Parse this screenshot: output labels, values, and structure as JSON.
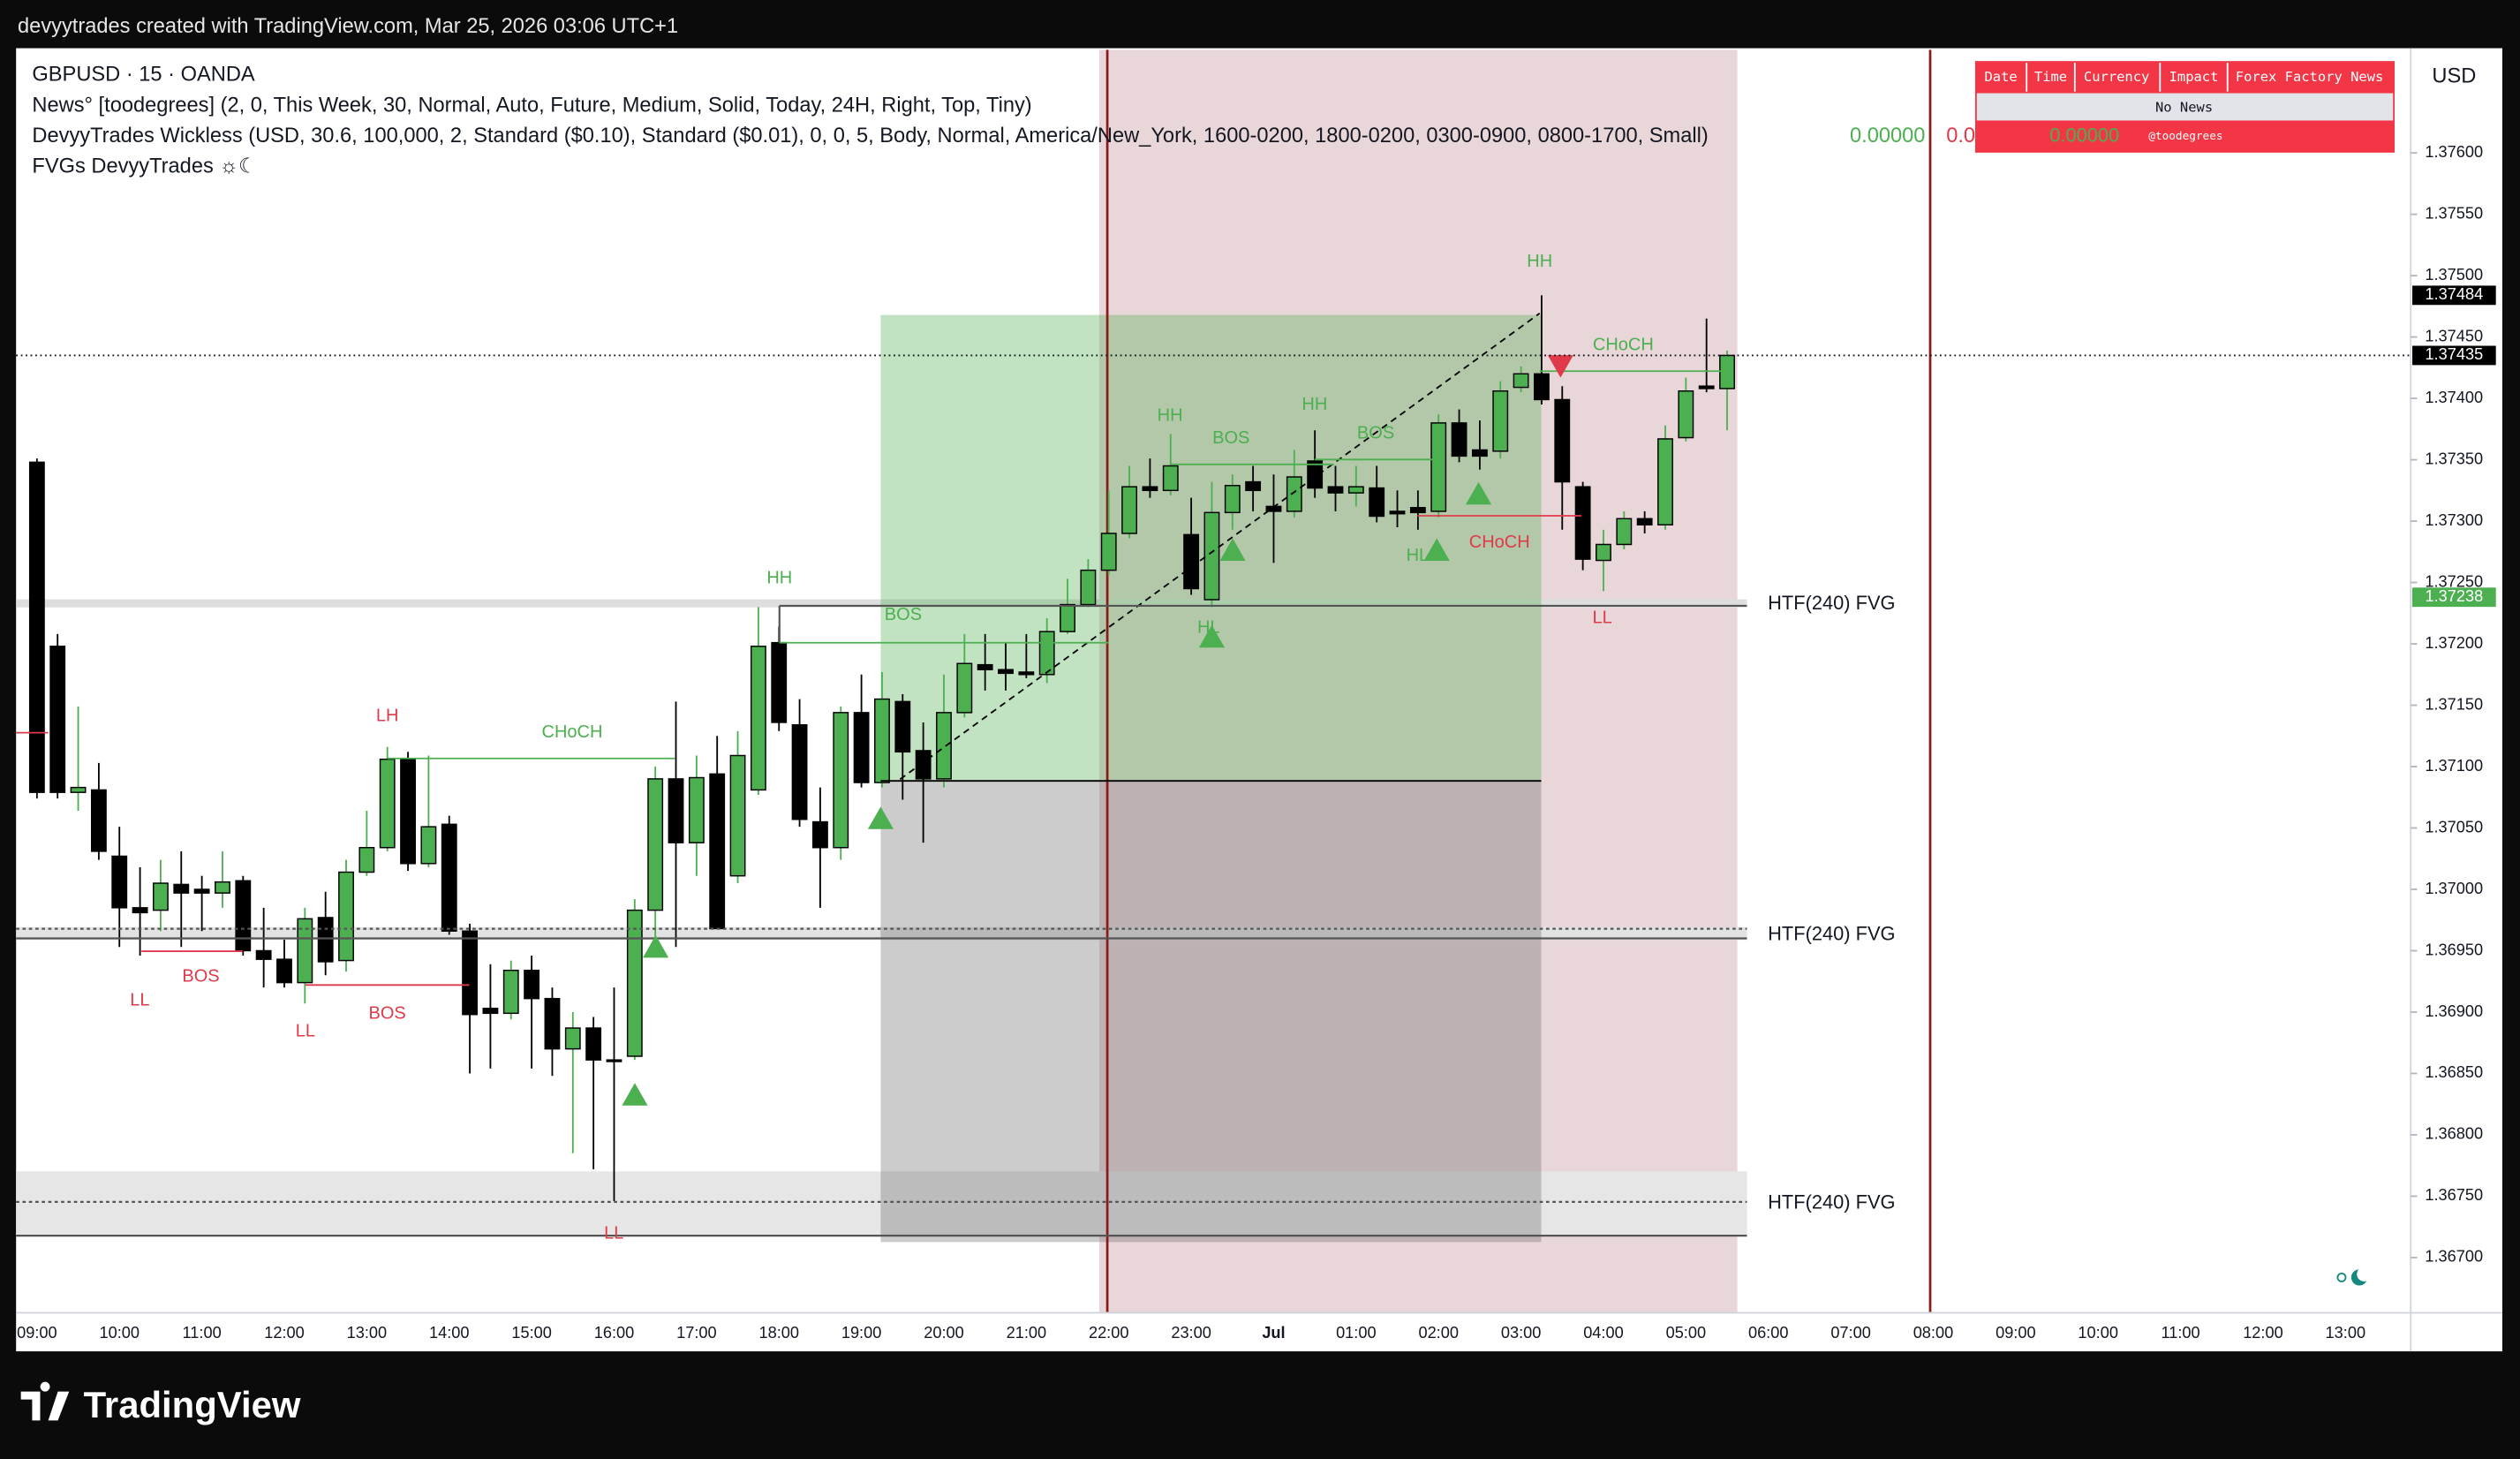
{
  "header": {
    "caption": "devyytrades created with TradingView.com, Mar 25, 2026 03:06 UTC+1",
    "brand": "TradingView"
  },
  "legend": {
    "symbol": "GBPUSD · 15 · OANDA",
    "news_indicator": "News° [toodegrees] (2, 0, This Week, 30, Normal, Auto, Future, Medium, Solid, Today, 24H, Right, Top, Tiny)",
    "wickless_indicator": "DevyyTrades Wickless (USD, 30.6, 100,000, 2, Standard ($0.10), Standard ($0.01), 0, 0, 5, Body, Normal, America/New_York, 1600-0200, 1800-0200, 0300-0900, 0800-1700, Small)",
    "wickless_values": [
      "0.00000",
      "0.0"
    ],
    "fvg_indicator": "FVGs DevyyTrades ☼☾"
  },
  "news_table": {
    "headers": [
      "Date",
      "Time",
      "Currency",
      "Impact",
      "Forex Factory News"
    ],
    "rows": [
      [
        "No News"
      ],
      [
        "0.00000",
        "@toodegrees"
      ]
    ]
  },
  "currency": "USD",
  "chart_data": {
    "type": "candlestick",
    "up_color": "#4caf50",
    "down_color": "#000000",
    "categories": [
      "09:00",
      null,
      null,
      null,
      "10:00",
      null,
      null,
      null,
      "11:00",
      null,
      null,
      null,
      "12:00",
      null,
      null,
      null,
      "13:00",
      null,
      null,
      null,
      "14:00",
      null,
      null,
      null,
      "15:00",
      null,
      null,
      null,
      "16:00",
      null,
      null,
      null,
      "17:00",
      null,
      null,
      null,
      "18:00",
      null,
      null,
      null,
      "19:00",
      null,
      null,
      null,
      "20:00",
      null,
      null,
      null,
      "21:00",
      null,
      null,
      null,
      "22:00",
      null,
      null,
      null,
      "23:00",
      null,
      null,
      null,
      "Jul",
      null,
      null,
      null,
      "01:00",
      null,
      null,
      null,
      "02:00",
      null,
      null,
      null,
      "03:00",
      null,
      null,
      null,
      "04:00",
      null,
      null,
      null,
      "05:00",
      null,
      null,
      null,
      "06:00",
      null,
      null,
      null,
      "07:00",
      null,
      null,
      null,
      "08:00",
      null,
      null,
      null,
      "09:00",
      null,
      null,
      null,
      "10:00",
      null,
      null,
      null,
      "11:00",
      null,
      null,
      null,
      "12:00",
      null,
      null,
      null,
      "13:00"
    ],
    "open": [
      1.37348,
      1.37198,
      1.37079,
      1.37081,
      1.37027,
      1.36985,
      1.36983,
      1.37004,
      1.37,
      1.36997,
      1.37007,
      1.3695,
      1.36943,
      1.36924,
      1.36977,
      1.36942,
      1.37014,
      1.37034,
      1.37106,
      1.37021,
      1.37053,
      1.36966,
      1.36903,
      1.36899,
      1.36934,
      1.36911,
      1.3687,
      1.36887,
      1.36861,
      1.36864,
      1.36983,
      1.3709,
      1.37038,
      1.37094,
      1.37011,
      1.37081,
      1.37201,
      1.37134,
      1.37055,
      1.37034,
      1.37144,
      1.37087,
      1.37153,
      1.37113,
      1.3709,
      1.37144,
      1.37183,
      1.37179,
      1.37177,
      1.37175,
      1.3721,
      1.37232,
      1.3726,
      1.3729,
      1.37328,
      1.37325,
      1.37289,
      1.37236,
      1.37307,
      1.37332,
      1.37312,
      1.37308,
      1.37349,
      1.37328,
      1.37323,
      1.37327,
      1.37308,
      1.37311,
      1.37308,
      1.3738,
      1.37358,
      1.37357,
      1.37409,
      1.3742,
      1.37399,
      1.37328,
      1.37268,
      1.37281,
      1.37302,
      1.37297,
      1.37368,
      1.3741,
      1.37408,
      null,
      null,
      null,
      null,
      null,
      null,
      null,
      null,
      null,
      null,
      null,
      null,
      null,
      null,
      null,
      null,
      null,
      null,
      null,
      null,
      null,
      null,
      null,
      null,
      null,
      null,
      null,
      null,
      null,
      null
    ],
    "high": [
      1.37351,
      1.37208,
      1.37149,
      1.37103,
      1.37051,
      1.37018,
      1.37024,
      1.37031,
      1.37011,
      1.37031,
      1.37011,
      1.36985,
      1.36959,
      1.36985,
      1.36998,
      1.37024,
      1.37064,
      1.37116,
      1.37112,
      1.37109,
      1.3706,
      1.36972,
      1.36939,
      1.36942,
      1.36946,
      1.3692,
      1.369,
      1.36896,
      1.3692,
      1.36992,
      1.371,
      1.37153,
      1.37109,
      1.37125,
      1.37129,
      1.3723,
      1.37214,
      1.37155,
      1.37083,
      1.37149,
      1.37175,
      1.37177,
      1.37159,
      1.37136,
      1.37175,
      1.37208,
      1.37208,
      1.37201,
      1.37208,
      1.37221,
      1.37253,
      1.37269,
      1.37325,
      1.37345,
      1.37351,
      1.37371,
      1.37319,
      1.37332,
      1.37338,
      1.37345,
      1.37338,
      1.37358,
      1.37374,
      1.37345,
      1.37345,
      1.37345,
      1.37325,
      1.37325,
      1.37387,
      1.37391,
      1.37382,
      1.37414,
      1.37426,
      1.37484,
      1.3741,
      1.37332,
      1.37293,
      1.37308,
      1.37308,
      1.37378,
      1.37417,
      1.37465,
      1.37439,
      null,
      null,
      null,
      null,
      null,
      null,
      null,
      null,
      null,
      null,
      null,
      null,
      null,
      null,
      null,
      null,
      null,
      null,
      null,
      null,
      null,
      null,
      null,
      null,
      null,
      null,
      null,
      null,
      null,
      null
    ],
    "low": [
      1.37074,
      1.37074,
      1.37064,
      1.37024,
      1.36953,
      1.36946,
      1.36966,
      1.36953,
      1.36966,
      1.36985,
      1.36946,
      1.3692,
      1.3692,
      1.36907,
      1.3693,
      1.36933,
      1.37011,
      1.37031,
      1.37015,
      1.37018,
      1.36963,
      1.3685,
      1.36854,
      1.36894,
      1.36854,
      1.36848,
      1.36785,
      1.36772,
      1.36746,
      1.36861,
      1.36953,
      1.36953,
      1.37011,
      1.36968,
      1.37005,
      1.37077,
      1.37129,
      1.37051,
      1.36985,
      1.37024,
      1.37083,
      1.37083,
      1.37073,
      1.37038,
      1.37083,
      1.3714,
      1.37162,
      1.37162,
      1.37172,
      1.37168,
      1.37208,
      1.3723,
      1.37256,
      1.37286,
      1.37319,
      1.37321,
      1.3724,
      1.3723,
      1.37293,
      1.37308,
      1.37266,
      1.37303,
      1.37319,
      1.37308,
      1.37312,
      1.37299,
      1.37295,
      1.37293,
      1.37303,
      1.37348,
      1.37342,
      1.37351,
      1.37405,
      1.37395,
      1.37293,
      1.3726,
      1.37243,
      1.37277,
      1.3729,
      1.37293,
      1.37365,
      1.37405,
      1.37374,
      null,
      null,
      null,
      null,
      null,
      null,
      null,
      null,
      null,
      null,
      null,
      null,
      null,
      null,
      null,
      null,
      null,
      null,
      null,
      null,
      null,
      null,
      null,
      null,
      null,
      null,
      null,
      null,
      null,
      null
    ],
    "close": [
      1.37079,
      1.37079,
      1.37083,
      1.37031,
      1.36985,
      1.36981,
      1.37005,
      1.36997,
      1.36997,
      1.37006,
      1.3695,
      1.36943,
      1.36924,
      1.36976,
      1.36941,
      1.37014,
      1.37034,
      1.37106,
      1.37021,
      1.37051,
      1.36966,
      1.36898,
      1.36899,
      1.36934,
      1.36911,
      1.3687,
      1.36887,
      1.36861,
      1.3686,
      1.36983,
      1.3709,
      1.37038,
      1.37091,
      1.36968,
      1.37109,
      1.37198,
      1.37136,
      1.37057,
      1.37034,
      1.37144,
      1.37087,
      1.37155,
      1.37112,
      1.3709,
      1.37144,
      1.37184,
      1.37179,
      1.37176,
      1.37175,
      1.3721,
      1.37232,
      1.3726,
      1.3729,
      1.37328,
      1.37325,
      1.37345,
      1.37245,
      1.37307,
      1.37329,
      1.37325,
      1.37308,
      1.37336,
      1.37327,
      1.37323,
      1.37328,
      1.37304,
      1.37306,
      1.37307,
      1.3738,
      1.37353,
      1.37353,
      1.37406,
      1.3742,
      1.37399,
      1.37332,
      1.37269,
      1.37281,
      1.37302,
      1.37297,
      1.37367,
      1.37406,
      1.37408,
      1.37435,
      null,
      null,
      null,
      null,
      null,
      null,
      null,
      null,
      null,
      null,
      null,
      null,
      null,
      null,
      null,
      null,
      null,
      null,
      null,
      null,
      null,
      null,
      null,
      null,
      null,
      null,
      null,
      null,
      null,
      null
    ],
    "ylim": [
      1.36655,
      1.37684
    ],
    "yticks": [
      {
        "value": 1.376,
        "label": "1.37600"
      },
      {
        "value": 1.3755,
        "label": "1.37550"
      },
      {
        "value": 1.375,
        "label": "1.37500"
      },
      {
        "value": 1.3745,
        "label": "1.37450"
      },
      {
        "value": 1.374,
        "label": "1.37400"
      },
      {
        "value": 1.3735,
        "label": "1.37350"
      },
      {
        "value": 1.373,
        "label": "1.37300"
      },
      {
        "value": 1.3725,
        "label": "1.37250"
      },
      {
        "value": 1.372,
        "label": "1.37200"
      },
      {
        "value": 1.3715,
        "label": "1.37150"
      },
      {
        "value": 1.371,
        "label": "1.37100"
      },
      {
        "value": 1.3705,
        "label": "1.37050"
      },
      {
        "value": 1.37,
        "label": "1.37000"
      },
      {
        "value": 1.3695,
        "label": "1.36950"
      },
      {
        "value": 1.369,
        "label": "1.36900"
      },
      {
        "value": 1.3685,
        "label": "1.36850"
      },
      {
        "value": 1.368,
        "label": "1.36800"
      },
      {
        "value": 1.3675,
        "label": "1.36750"
      },
      {
        "value": 1.367,
        "label": "1.36700"
      }
    ],
    "price_markers": [
      1.37484,
      1.37435,
      1.37238
    ],
    "price_marker_colors": [
      "#000000",
      "#000000",
      "#4caf50"
    ],
    "annotations": [
      "HH",
      "HH",
      "HH",
      "HH",
      "BOS",
      "BOS",
      "BOS",
      "CHoCH",
      "CHoCH",
      "HL",
      "HL",
      "LH",
      "LL",
      "LL",
      "LL",
      "LL",
      "BOS",
      "BOS",
      "CHoCH",
      "HTF(240) FVG",
      "HTF(240) FVG",
      "HTF(240) FVG"
    ]
  }
}
